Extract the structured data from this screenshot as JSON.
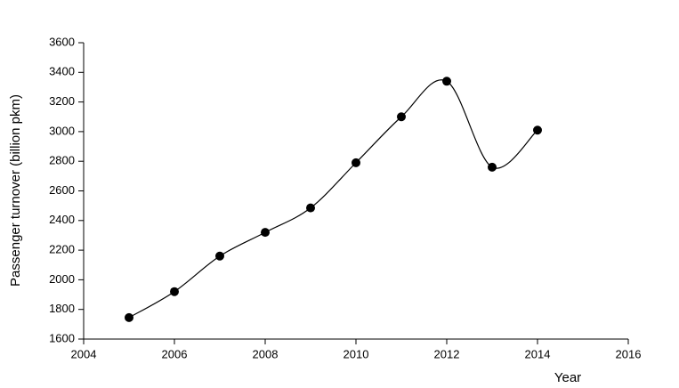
{
  "chart_data": {
    "type": "line",
    "x_label": "Year",
    "y_label": "Passenger turnover (billion pkm)",
    "x": [
      2005,
      2006,
      2007,
      2008,
      2009,
      2010,
      2011,
      2012,
      2013,
      2014
    ],
    "series": [
      {
        "color": "#000000",
        "values": [
          1745,
          1920,
          2160,
          2320,
          2485,
          2790,
          3100,
          3340,
          2760,
          3010
        ]
      }
    ],
    "xlim": [
      2004,
      2016
    ],
    "xticks": [
      2004,
      2006,
      2008,
      2010,
      2012,
      2014,
      2016
    ],
    "ylim": [
      1600,
      3600
    ],
    "yticks": [
      1600,
      1800,
      2000,
      2200,
      2400,
      2600,
      2800,
      3000,
      3200,
      3400,
      3600
    ],
    "smooth": true,
    "markers": true
  }
}
